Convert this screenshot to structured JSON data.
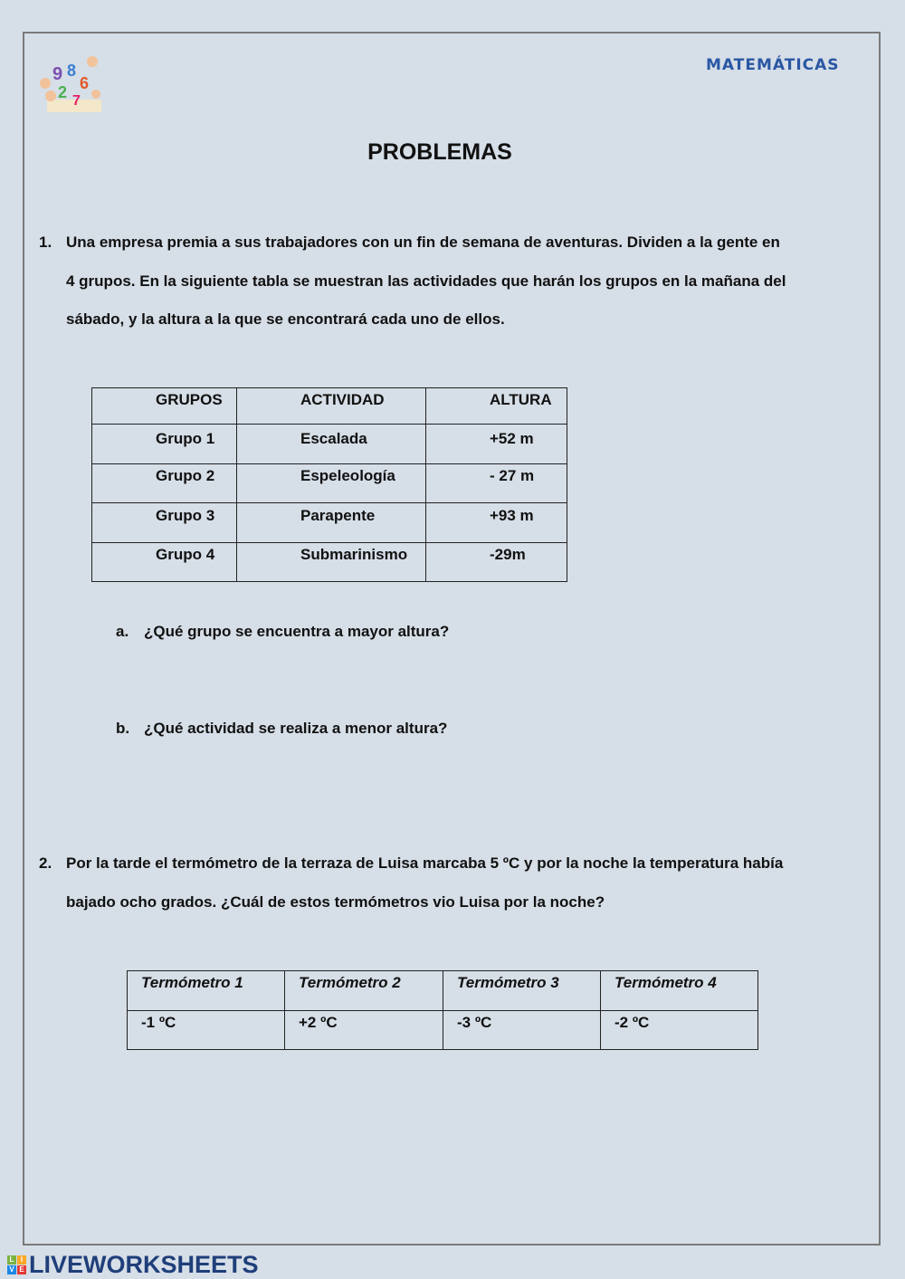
{
  "header": {
    "subject": "MATEMÁTICAS",
    "title": "PROBLEMAS",
    "logo_icon": "children-with-numbers-clipart"
  },
  "problem1": {
    "number": "1.",
    "lines": [
      "Una empresa premia a sus trabajadores con un fin de semana de aventuras. Dividen a la gente en",
      "4 grupos. En la siguiente tabla se muestran las actividades que harán los grupos en la mañana del",
      "sábado, y la altura a la que se encontrará cada uno de ellos."
    ],
    "table": {
      "headers": [
        "GRUPOS",
        "ACTIVIDAD",
        "ALTURA"
      ],
      "rows": [
        [
          "Grupo 1",
          "Escalada",
          "+52 m"
        ],
        [
          "Grupo 2",
          "Espeleología",
          "- 27 m"
        ],
        [
          "Grupo 3",
          "Parapente",
          "+93 m"
        ],
        [
          "Grupo 4",
          "Submarinismo",
          "-29m"
        ]
      ]
    },
    "questions": [
      {
        "label": "a.",
        "text": "¿Qué grupo se encuentra a mayor altura?"
      },
      {
        "label": "b.",
        "text": "¿Qué actividad se realiza a menor altura?"
      }
    ]
  },
  "problem2": {
    "number": "2.",
    "lines": [
      "Por la tarde el termómetro de la terraza de Luisa marcaba 5 ºC y por la noche la temperatura había",
      "bajado ocho grados. ¿Cuál de estos termómetros vio Luisa por la noche?"
    ],
    "table": {
      "headers": [
        "Termómetro 1",
        "Termómetro 2",
        "Termómetro 3",
        "Termómetro 4"
      ],
      "values": [
        "-1 ºC",
        "+2 ºC",
        "-3 ºC",
        "-2 ºC"
      ]
    }
  },
  "footer": {
    "brand": "LIVEWORKSHEETS",
    "badge": [
      "L",
      "I",
      "V",
      "E"
    ]
  }
}
